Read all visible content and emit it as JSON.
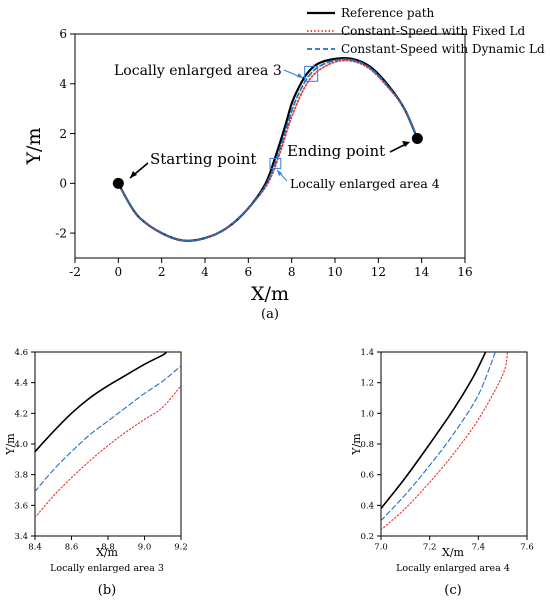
{
  "chart_data": [
    {
      "panel": "(a)",
      "type": "line",
      "xlabel": "X/m",
      "ylabel": "Y/m",
      "xlim": [
        -2,
        16
      ],
      "ylim": [
        -3,
        6
      ],
      "xticks": [
        -2,
        0,
        2,
        4,
        6,
        8,
        10,
        12,
        14,
        16
      ],
      "yticks": [
        -2,
        0,
        2,
        4,
        6
      ],
      "legend": {
        "placement": "top-right",
        "entries": [
          "Reference path",
          "Constant-Speed with Fixed Ld",
          "Constant-Speed with Dynamic Ld"
        ]
      },
      "series": [
        {
          "name": "Reference path",
          "style": "solid",
          "color": "#000000",
          "x": [
            0,
            0.5,
            1,
            2,
            3,
            4,
            5,
            6,
            6.8,
            7.3,
            7.7,
            8.0,
            8.3,
            8.7,
            9.2,
            10,
            10.8,
            11.6,
            12.4,
            13.2,
            13.8
          ],
          "y": [
            0,
            -0.8,
            -1.4,
            -2.0,
            -2.3,
            -2.2,
            -1.8,
            -1.0,
            0.0,
            1.2,
            2.3,
            3.2,
            3.8,
            4.4,
            4.8,
            5.0,
            5.0,
            4.7,
            4.0,
            3.0,
            1.8
          ]
        },
        {
          "name": "Constant-Speed with Fixed Ld",
          "style": "dotted",
          "color": "#e5322d",
          "x": [
            0,
            0.5,
            1,
            2,
            3,
            4,
            5,
            6,
            6.9,
            7.45,
            7.85,
            8.15,
            8.45,
            8.85,
            9.35,
            10.1,
            10.85,
            11.6,
            12.4,
            13.2,
            13.8
          ],
          "y": [
            0,
            -0.8,
            -1.4,
            -2.0,
            -2.3,
            -2.2,
            -1.8,
            -1.0,
            0.0,
            1.2,
            2.3,
            3.0,
            3.6,
            4.2,
            4.6,
            4.9,
            4.9,
            4.6,
            3.9,
            3.0,
            1.8
          ]
        },
        {
          "name": "Constant-Speed with Dynamic Ld",
          "style": "dashed",
          "color": "#1f6fc8",
          "x": [
            0,
            0.5,
            1,
            2,
            3,
            4,
            5,
            6,
            6.85,
            7.38,
            7.78,
            8.08,
            8.38,
            8.78,
            9.28,
            10.05,
            10.82,
            11.6,
            12.4,
            13.2,
            13.8
          ],
          "y": [
            0,
            -0.8,
            -1.4,
            -2.0,
            -2.3,
            -2.2,
            -1.8,
            -1.0,
            0.0,
            1.2,
            2.3,
            3.1,
            3.7,
            4.3,
            4.7,
            4.95,
            4.95,
            4.65,
            3.95,
            3.0,
            1.8
          ]
        }
      ],
      "points": [
        {
          "label": "Starting point",
          "x": 0,
          "y": 0
        },
        {
          "label": "Ending point",
          "x": 13.8,
          "y": 1.8
        }
      ],
      "annotations": [
        {
          "text": "Locally enlarged area 3",
          "box": {
            "x": [
              8.6,
              9.2
            ],
            "y": [
              4.1,
              4.7
            ]
          }
        },
        {
          "text": "Locally enlarged area 4",
          "box": {
            "x": [
              7.0,
              7.5
            ],
            "y": [
              0.6,
              1.0
            ]
          }
        }
      ]
    },
    {
      "panel": "(b)",
      "type": "line",
      "xlabel": "X/m",
      "ylabel": "Y/m",
      "caption": "Locally enlarged area 3",
      "xlim": [
        8.4,
        9.2
      ],
      "ylim": [
        3.4,
        4.6
      ],
      "xticks": [
        8.4,
        8.6,
        8.8,
        9.0,
        9.2
      ],
      "yticks": [
        3.4,
        3.6,
        3.8,
        4.0,
        4.2,
        4.4,
        4.6
      ],
      "series": [
        {
          "name": "Reference path",
          "style": "solid",
          "color": "#000000",
          "x": [
            8.4,
            8.5,
            8.6,
            8.7,
            8.8,
            8.9,
            9.0,
            9.1,
            9.12
          ],
          "y": [
            3.95,
            4.08,
            4.2,
            4.3,
            4.38,
            4.45,
            4.52,
            4.58,
            4.6
          ]
        },
        {
          "name": "Constant-Speed with Fixed Ld",
          "style": "dotted",
          "color": "#e5322d",
          "x": [
            8.4,
            8.5,
            8.6,
            8.7,
            8.8,
            8.9,
            9.0,
            9.1,
            9.2
          ],
          "y": [
            3.52,
            3.66,
            3.78,
            3.89,
            3.99,
            4.08,
            4.16,
            4.24,
            4.38
          ]
        },
        {
          "name": "Constant-Speed with Dynamic Ld",
          "style": "dashed",
          "color": "#1f6fc8",
          "x": [
            8.4,
            8.5,
            8.6,
            8.7,
            8.8,
            8.9,
            9.0,
            9.1,
            9.2
          ],
          "y": [
            3.69,
            3.83,
            3.95,
            4.06,
            4.15,
            4.24,
            4.33,
            4.41,
            4.51
          ]
        }
      ]
    },
    {
      "panel": "(c)",
      "type": "line",
      "xlabel": "X/m",
      "ylabel": "Y/m",
      "caption": "Locally enlarged area 4",
      "xlim": [
        7.0,
        7.6
      ],
      "ylim": [
        0.2,
        1.4
      ],
      "xticks": [
        7.0,
        7.2,
        7.4,
        7.6
      ],
      "yticks": [
        0.2,
        0.4,
        0.6,
        0.8,
        1.0,
        1.2,
        1.4
      ],
      "series": [
        {
          "name": "Reference path",
          "style": "solid",
          "color": "#000000",
          "x": [
            7.0,
            7.1,
            7.2,
            7.3,
            7.38,
            7.43
          ],
          "y": [
            0.38,
            0.58,
            0.8,
            1.03,
            1.24,
            1.4
          ]
        },
        {
          "name": "Constant-Speed with Fixed Ld",
          "style": "dotted",
          "color": "#e5322d",
          "x": [
            7.0,
            7.1,
            7.2,
            7.3,
            7.4,
            7.5,
            7.52
          ],
          "y": [
            0.24,
            0.38,
            0.55,
            0.74,
            0.96,
            1.25,
            1.4
          ]
        },
        {
          "name": "Constant-Speed with Dynamic Ld",
          "style": "dashed",
          "color": "#1f6fc8",
          "x": [
            7.0,
            7.1,
            7.2,
            7.3,
            7.4,
            7.47
          ],
          "y": [
            0.3,
            0.47,
            0.66,
            0.87,
            1.12,
            1.4
          ]
        }
      ]
    }
  ]
}
